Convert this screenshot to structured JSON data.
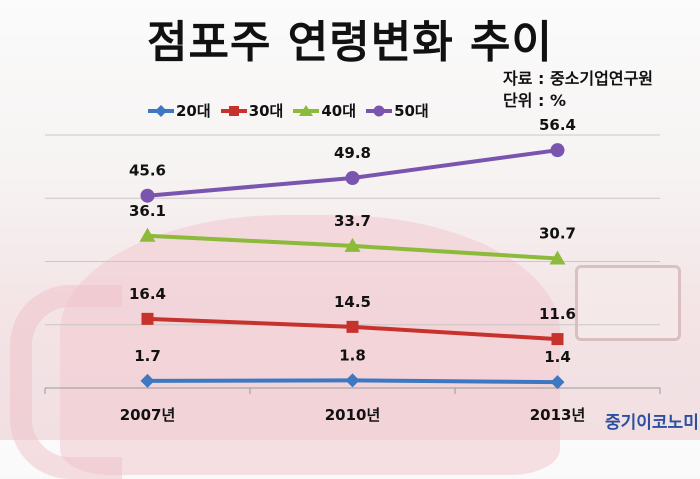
{
  "title": "점포주 연령변화 추이",
  "source": "자료 : 중소기업연구원",
  "unit": "단위 : %",
  "brand": "중기이코노미",
  "chart_data": {
    "type": "line",
    "title": "점포주 연령변화 추이",
    "categories": [
      "2007년",
      "2010년",
      "2013년"
    ],
    "ylim": [
      0,
      60
    ],
    "grid": true,
    "legend_position": "top",
    "series": [
      {
        "name": "20대",
        "values": [
          1.7,
          1.8,
          1.4
        ],
        "color": "#3d78c0",
        "marker": "diamond"
      },
      {
        "name": "30대",
        "values": [
          16.4,
          14.5,
          11.6
        ],
        "color": "#c8322d",
        "marker": "square"
      },
      {
        "name": "40대",
        "values": [
          36.1,
          33.7,
          30.7
        ],
        "color": "#8cba3a",
        "marker": "triangle"
      },
      {
        "name": "50대",
        "values": [
          45.6,
          49.8,
          56.4
        ],
        "color": "#7a55b0",
        "marker": "circle"
      }
    ]
  }
}
